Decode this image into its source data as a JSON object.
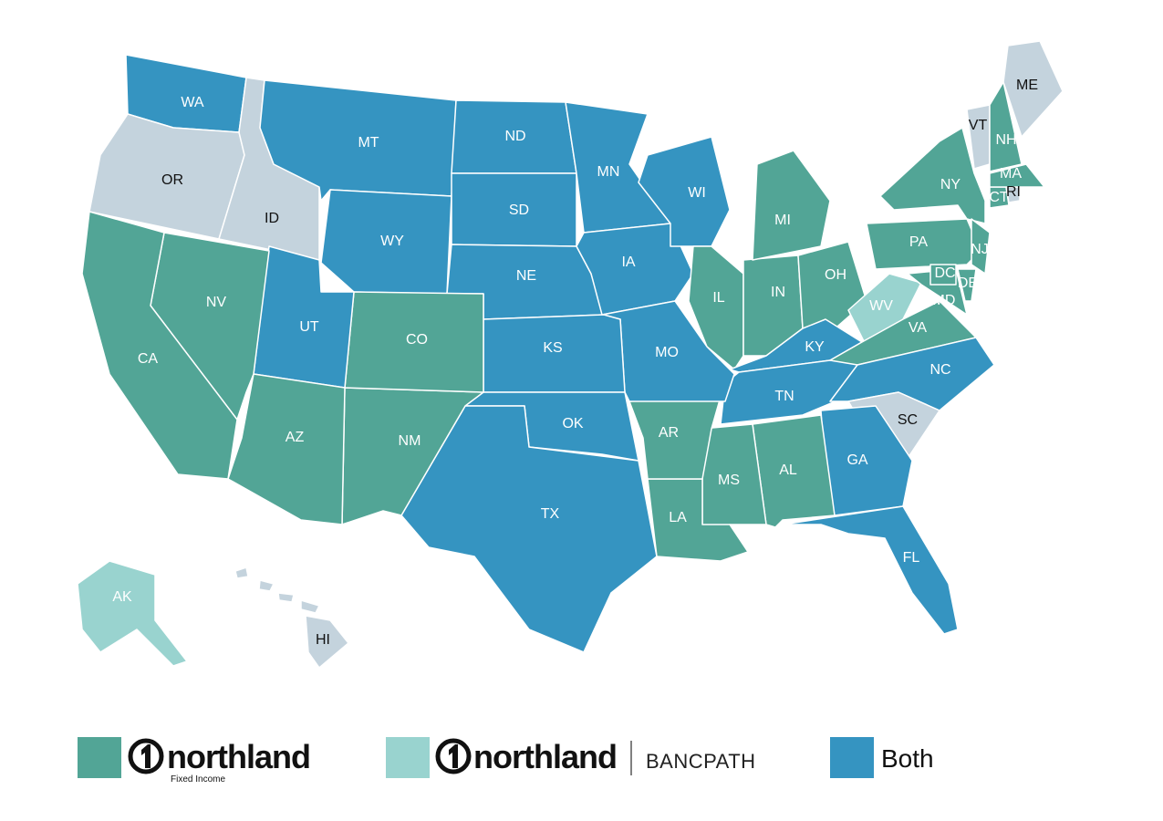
{
  "map": {
    "states": [
      {
        "label": "WA",
        "color": "#3594c1",
        "label_color": "#ffffff"
      },
      {
        "label": "OR",
        "color": "#c4d3dd",
        "label_color": "#111111"
      },
      {
        "label": "ID",
        "color": "#c4d3dd",
        "label_color": "#111111"
      },
      {
        "label": "MT",
        "color": "#3594c1",
        "label_color": "#ffffff"
      },
      {
        "label": "WY",
        "color": "#3594c1",
        "label_color": "#ffffff"
      },
      {
        "label": "ND",
        "color": "#3594c1",
        "label_color": "#ffffff"
      },
      {
        "label": "SD",
        "color": "#3594c1",
        "label_color": "#ffffff"
      },
      {
        "label": "NE",
        "color": "#3594c1",
        "label_color": "#ffffff"
      },
      {
        "label": "MN",
        "color": "#3594c1",
        "label_color": "#ffffff"
      },
      {
        "label": "IA",
        "color": "#3594c1",
        "label_color": "#ffffff"
      },
      {
        "label": "WI",
        "color": "#3594c1",
        "label_color": "#ffffff"
      },
      {
        "label": "IL",
        "color": "#52a596",
        "label_color": "#ffffff"
      },
      {
        "label": "IN",
        "color": "#52a596",
        "label_color": "#ffffff"
      },
      {
        "label": "MI",
        "color": "#52a596",
        "label_color": "#ffffff"
      },
      {
        "label": "OH",
        "color": "#52a596",
        "label_color": "#ffffff"
      },
      {
        "label": "KY",
        "color": "#3594c1",
        "label_color": "#ffffff"
      },
      {
        "label": "TN",
        "color": "#3594c1",
        "label_color": "#ffffff"
      },
      {
        "label": "WV",
        "color": "#99d3cf",
        "label_color": "#ffffff"
      },
      {
        "label": "VA",
        "color": "#52a596",
        "label_color": "#ffffff"
      },
      {
        "label": "NC",
        "color": "#3594c1",
        "label_color": "#ffffff"
      },
      {
        "label": "SC",
        "color": "#c4d3dd",
        "label_color": "#111111"
      },
      {
        "label": "GA",
        "color": "#3594c1",
        "label_color": "#ffffff"
      },
      {
        "label": "FL",
        "color": "#3594c1",
        "label_color": "#ffffff"
      },
      {
        "label": "AL",
        "color": "#52a596",
        "label_color": "#ffffff"
      },
      {
        "label": "MS",
        "color": "#52a596",
        "label_color": "#ffffff"
      },
      {
        "label": "LA",
        "color": "#52a596",
        "label_color": "#ffffff"
      },
      {
        "label": "AR",
        "color": "#52a596",
        "label_color": "#ffffff"
      },
      {
        "label": "MO",
        "color": "#3594c1",
        "label_color": "#ffffff"
      },
      {
        "label": "KS",
        "color": "#3594c1",
        "label_color": "#ffffff"
      },
      {
        "label": "OK",
        "color": "#3594c1",
        "label_color": "#ffffff"
      },
      {
        "label": "TX",
        "color": "#3594c1",
        "label_color": "#ffffff"
      },
      {
        "label": "NM",
        "color": "#52a596",
        "label_color": "#ffffff"
      },
      {
        "label": "CO",
        "color": "#52a596",
        "label_color": "#ffffff"
      },
      {
        "label": "UT",
        "color": "#3594c1",
        "label_color": "#ffffff"
      },
      {
        "label": "AZ",
        "color": "#52a596",
        "label_color": "#ffffff"
      },
      {
        "label": "NV",
        "color": "#52a596",
        "label_color": "#ffffff"
      },
      {
        "label": "CA",
        "color": "#52a596",
        "label_color": "#ffffff"
      },
      {
        "label": "NY",
        "color": "#52a596",
        "label_color": "#ffffff"
      },
      {
        "label": "PA",
        "color": "#52a596",
        "label_color": "#ffffff"
      },
      {
        "label": "NJ",
        "color": "#52a596",
        "label_color": "#ffffff"
      },
      {
        "label": "MD",
        "color": "#52a596",
        "label_color": "#ffffff"
      },
      {
        "label": "DE",
        "color": "#52a596",
        "label_color": "#ffffff"
      },
      {
        "label": "DC",
        "color": "#52a596",
        "label_color": "#ffffff"
      },
      {
        "label": "CT",
        "color": "#52a596",
        "label_color": "#ffffff"
      },
      {
        "label": "RI",
        "color": "#c4d3dd",
        "label_color": "#111111"
      },
      {
        "label": "MA",
        "color": "#52a596",
        "label_color": "#ffffff"
      },
      {
        "label": "VT",
        "color": "#c4d3dd",
        "label_color": "#111111"
      },
      {
        "label": "NH",
        "color": "#52a596",
        "label_color": "#ffffff"
      },
      {
        "label": "ME",
        "color": "#c4d3dd",
        "label_color": "#111111"
      },
      {
        "label": "AK",
        "color": "#99d3cf",
        "label_color": "#ffffff"
      },
      {
        "label": "HI",
        "color": "#c4d3dd",
        "label_color": "#111111"
      }
    ],
    "legend": [
      {
        "color": "#52a596",
        "brand": "northland",
        "tagline": "Fixed Income"
      },
      {
        "color": "#99d3cf",
        "brand": "northland",
        "partner": "BANCPATH"
      },
      {
        "color": "#3594c1",
        "label": "Both"
      }
    ]
  }
}
